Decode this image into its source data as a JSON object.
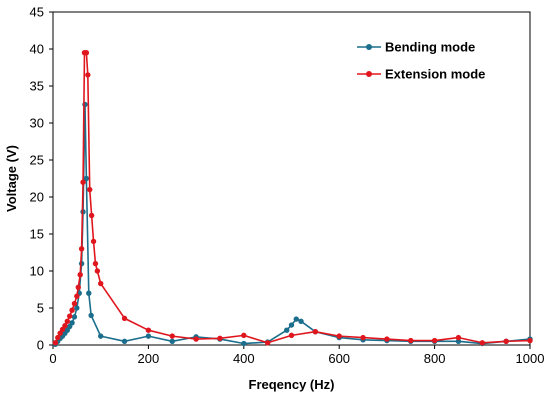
{
  "chart_data": {
    "type": "line",
    "xlabel": "Freqency (Hz)",
    "ylabel": "Voltage (V)",
    "xlim": [
      0,
      1000
    ],
    "ylim": [
      0,
      45
    ],
    "x_ticks": [
      0,
      200,
      400,
      600,
      800,
      1000
    ],
    "y_ticks": [
      0,
      5,
      10,
      15,
      20,
      25,
      30,
      35,
      40,
      45
    ],
    "grid": false,
    "legend_position": "top-right",
    "series": [
      {
        "name": "Bending mode",
        "color": "#1b6e8c",
        "marker": "circle",
        "points": [
          [
            5,
            0.1
          ],
          [
            10,
            0.5
          ],
          [
            15,
            0.9
          ],
          [
            20,
            1.2
          ],
          [
            25,
            1.6
          ],
          [
            30,
            2.0
          ],
          [
            35,
            2.5
          ],
          [
            40,
            3.0
          ],
          [
            45,
            3.8
          ],
          [
            50,
            5.0
          ],
          [
            55,
            7.0
          ],
          [
            60,
            11.0
          ],
          [
            63,
            18.0
          ],
          [
            67,
            32.5
          ],
          [
            70,
            22.5
          ],
          [
            75,
            7.0
          ],
          [
            80,
            4.0
          ],
          [
            100,
            1.2
          ],
          [
            150,
            0.5
          ],
          [
            200,
            1.2
          ],
          [
            250,
            0.5
          ],
          [
            300,
            1.1
          ],
          [
            350,
            0.8
          ],
          [
            400,
            0.2
          ],
          [
            450,
            0.4
          ],
          [
            490,
            2.0
          ],
          [
            500,
            2.7
          ],
          [
            510,
            3.5
          ],
          [
            520,
            3.2
          ],
          [
            550,
            1.8
          ],
          [
            600,
            1.0
          ],
          [
            650,
            0.7
          ],
          [
            700,
            0.6
          ],
          [
            750,
            0.5
          ],
          [
            800,
            0.5
          ],
          [
            850,
            0.5
          ],
          [
            900,
            0.2
          ],
          [
            950,
            0.5
          ],
          [
            1000,
            0.8
          ]
        ]
      },
      {
        "name": "Extension mode",
        "color": "#e0161e",
        "marker": "circle",
        "points": [
          [
            5,
            0.3
          ],
          [
            10,
            1.0
          ],
          [
            15,
            1.6
          ],
          [
            20,
            2.1
          ],
          [
            25,
            2.6
          ],
          [
            30,
            3.2
          ],
          [
            35,
            3.9
          ],
          [
            40,
            4.7
          ],
          [
            45,
            5.6
          ],
          [
            50,
            6.6
          ],
          [
            53,
            7.8
          ],
          [
            57,
            9.5
          ],
          [
            60,
            13.0
          ],
          [
            63,
            22.0
          ],
          [
            66,
            39.5
          ],
          [
            70,
            39.5
          ],
          [
            73,
            36.5
          ],
          [
            77,
            21.0
          ],
          [
            81,
            17.5
          ],
          [
            85,
            14.0
          ],
          [
            89,
            11.0
          ],
          [
            93,
            10.0
          ],
          [
            100,
            8.3
          ],
          [
            150,
            3.6
          ],
          [
            200,
            2.0
          ],
          [
            250,
            1.2
          ],
          [
            300,
            0.8
          ],
          [
            350,
            0.9
          ],
          [
            400,
            1.3
          ],
          [
            450,
            0.3
          ],
          [
            500,
            1.3
          ],
          [
            550,
            1.8
          ],
          [
            600,
            1.2
          ],
          [
            650,
            1.0
          ],
          [
            700,
            0.8
          ],
          [
            750,
            0.6
          ],
          [
            800,
            0.6
          ],
          [
            850,
            1.0
          ],
          [
            900,
            0.3
          ],
          [
            950,
            0.5
          ],
          [
            1000,
            0.6
          ]
        ]
      }
    ]
  }
}
